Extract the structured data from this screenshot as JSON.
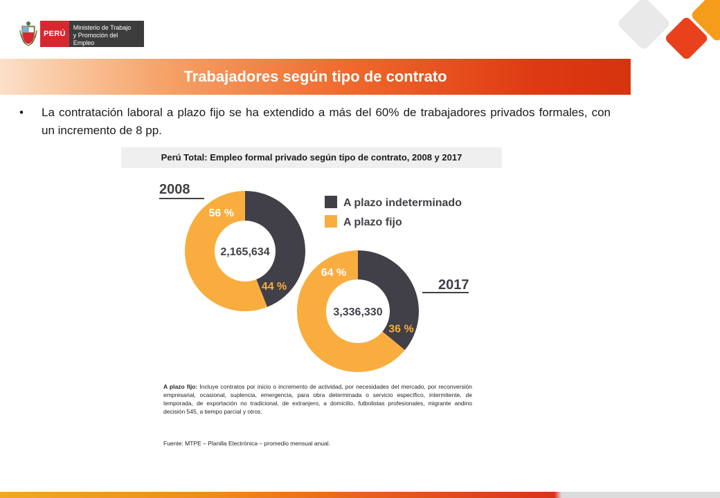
{
  "header": {
    "logo_country": "PERÚ",
    "logo_ministry_line1": "Ministerio de Trabajo",
    "logo_ministry_line2": "y Promoción del Empleo"
  },
  "slide": {
    "title": "Trabajadores según tipo de contrato",
    "bullet": "La contratación laboral a plazo fijo se ha extendido a más del 60% de trabajadores privados formales, con un incremento de 8 pp.",
    "note_label": "A plazo fijo:",
    "note_text": " Incluye contratos por inicio o incremento de actividad, por necesidades del mercado, por reconversión empresarial, ocasional, suplencia, emergencia, para obra determinada o servicio específico, intermitente, de temporada, de exportación no tradicional, de extranjero, a domicilio, futbolistas profesionales, migrante andino decisión 545, a tiempo parcial y otros.",
    "source": "Fuente: MTPE – Planilla Electrónica – promedio mensual anual."
  },
  "colors": {
    "indeterminado": "#413f47",
    "plazo_fijo": "#f9ad3f",
    "pct_indeterminado_label": "#f9ad3f",
    "pct_fijo_label": "#ffffff"
  },
  "chart_data": {
    "type": "pie",
    "title": "Perú Total: Empleo formal privado según tipo de contrato, 2008 y 2017",
    "legend": [
      "A plazo indeterminado",
      "A plazo fijo"
    ],
    "legend_position": "top-right",
    "charts": [
      {
        "year": "2008",
        "total": "2,165,634",
        "slices": [
          {
            "name": "A plazo indeterminado",
            "value": 44,
            "label": "44 %"
          },
          {
            "name": "A plazo fijo",
            "value": 56,
            "label": "56 %"
          }
        ]
      },
      {
        "year": "2017",
        "total": "3,336,330",
        "slices": [
          {
            "name": "A plazo indeterminado",
            "value": 36,
            "label": "36 %"
          },
          {
            "name": "A plazo fijo",
            "value": 64,
            "label": "64 %"
          }
        ]
      }
    ]
  }
}
